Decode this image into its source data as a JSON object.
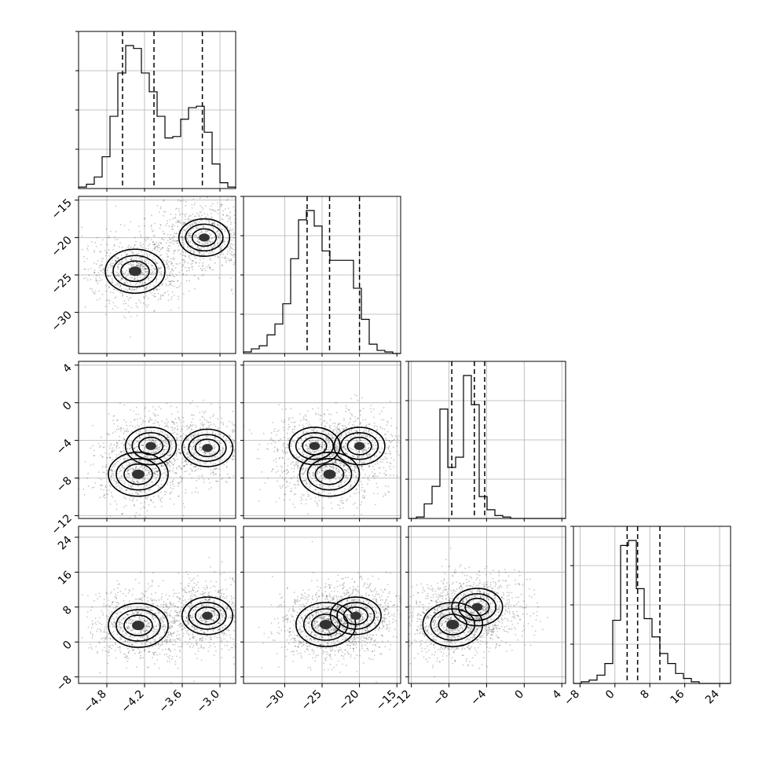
{
  "chart_data": {
    "type": "corner",
    "grid": true,
    "parameters": [
      {
        "ticks": [
          -4.8,
          -4.2,
          -3.6,
          -3.0
        ],
        "tick_labels": [
          "−4.8",
          "−4.2",
          "−3.6",
          "−3.0"
        ],
        "range": [
          -5.25,
          -2.75
        ]
      },
      {
        "ticks": [
          -30,
          -25,
          -20
        ],
        "tick_labels": [
          "−30",
          "−25",
          "−20"
        ],
        "range": [
          -35.5,
          -14.5
        ],
        "x_ticks": [
          -30,
          -25,
          -20,
          -15
        ],
        "x_tick_labels": [
          "−30",
          "−25",
          "−20",
          "−15"
        ],
        "y_tick_labels_left": [
          "−15",
          "−20",
          "−25",
          "−30"
        ],
        "y_ticks_left": [
          -15,
          -20,
          -25,
          -30
        ]
      },
      {
        "ticks": [
          -12,
          -8,
          -4,
          0,
          4
        ],
        "tick_labels": [
          "−12",
          "−8",
          "−4",
          "0",
          "4"
        ],
        "range": [
          -12.3,
          4.4
        ],
        "y_ticks_left": [
          4,
          0,
          -4,
          -8,
          -12
        ],
        "y_tick_labels_left": [
          "4",
          "0",
          "−4",
          "−8",
          "−12"
        ]
      },
      {
        "ticks": [
          -8,
          0,
          8,
          16,
          24
        ],
        "tick_labels": [
          "−8",
          "0",
          "8",
          "16",
          "24"
        ],
        "range": [
          -9.5,
          26.5
        ],
        "y_ticks_left": [
          24,
          16,
          8,
          0,
          -8
        ],
        "y_tick_labels_left": [
          "24",
          "16",
          "8",
          "0",
          "−8"
        ]
      }
    ],
    "histograms": [
      {
        "param": 0,
        "edges": [
          -5.25,
          -5.125,
          -5.0,
          -4.875,
          -4.75,
          -4.625,
          -4.5,
          -4.375,
          -4.25,
          -4.125,
          -4.0,
          -3.875,
          -3.75,
          -3.625,
          -3.5,
          -3.375,
          -3.25,
          -3.125,
          -3.0,
          -2.875,
          -2.75
        ],
        "counts": [
          0.01,
          0.03,
          0.08,
          0.22,
          0.5,
          0.8,
          0.99,
          0.97,
          0.8,
          0.67,
          0.5,
          0.35,
          0.36,
          0.48,
          0.56,
          0.57,
          0.39,
          0.17,
          0.04,
          0.01
        ],
        "quantiles": [
          -4.55,
          -4.05,
          -3.28
        ]
      },
      {
        "param": 1,
        "edges": [
          -35.5,
          -34.45,
          -33.4,
          -32.35,
          -31.3,
          -30.25,
          -29.2,
          -28.15,
          -27.1,
          -26.05,
          -25.0,
          -23.95,
          -22.9,
          -21.85,
          -20.8,
          -19.75,
          -18.7,
          -17.65,
          -16.6,
          -15.55,
          -14.5
        ],
        "counts": [
          0.01,
          0.03,
          0.05,
          0.12,
          0.19,
          0.32,
          0.61,
          0.86,
          0.92,
          0.82,
          0.66,
          0.6,
          0.6,
          0.6,
          0.42,
          0.22,
          0.06,
          0.02,
          0.01,
          0.0
        ],
        "quantiles": [
          -27.0,
          -24.0,
          -20.0
        ]
      },
      {
        "param": 2,
        "edges": [
          -12.3,
          -11.465,
          -10.63,
          -9.795,
          -8.96,
          -8.125,
          -7.29,
          -6.455,
          -5.62,
          -4.785,
          -3.95,
          -3.115,
          -2.28,
          -1.445,
          -0.61,
          0.225,
          1.06,
          1.895,
          2.73,
          3.565,
          4.4
        ],
        "counts": [
          0.0,
          0.01,
          0.1,
          0.22,
          0.75,
          0.35,
          0.42,
          0.98,
          0.78,
          0.15,
          0.06,
          0.02,
          0.01,
          0.0,
          0.0,
          0.0,
          0.0,
          0.0,
          0.0,
          0.0
        ],
        "quantiles": [
          -7.7,
          -5.3,
          -4.2
        ]
      },
      {
        "param": 3,
        "edges": [
          -9.5,
          -7.7,
          -5.9,
          -4.1,
          -2.3,
          -0.5,
          1.3,
          3.1,
          4.9,
          6.7,
          8.5,
          10.3,
          12.1,
          13.9,
          15.7,
          17.5,
          19.3,
          21.1,
          22.9,
          24.7,
          26.5
        ],
        "counts": [
          0.0,
          0.01,
          0.02,
          0.05,
          0.12,
          0.38,
          0.83,
          0.86,
          0.57,
          0.39,
          0.28,
          0.18,
          0.12,
          0.06,
          0.03,
          0.01,
          0.0,
          0.0,
          0.0,
          0.0
        ],
        "quantiles": [
          2.8,
          5.2,
          10.3
        ]
      }
    ],
    "joint_2d": [
      {
        "x": 0,
        "y": 1,
        "modes": [
          {
            "x": -4.35,
            "y": -24.5
          },
          {
            "x": -3.25,
            "y": -20.0
          }
        ]
      },
      {
        "x": 0,
        "y": 2,
        "modes": [
          {
            "x": -4.3,
            "y": -7.6
          },
          {
            "x": -4.1,
            "y": -4.6
          },
          {
            "x": -3.2,
            "y": -4.8
          }
        ]
      },
      {
        "x": 1,
        "y": 2,
        "modes": [
          {
            "x": -24.0,
            "y": -7.6
          },
          {
            "x": -26.0,
            "y": -4.6
          },
          {
            "x": -20.0,
            "y": -4.6
          }
        ]
      },
      {
        "x": 0,
        "y": 3,
        "modes": [
          {
            "x": -4.3,
            "y": 3.8
          },
          {
            "x": -3.2,
            "y": 6.0
          }
        ]
      },
      {
        "x": 1,
        "y": 3,
        "modes": [
          {
            "x": -24.5,
            "y": 4.0
          },
          {
            "x": -20.5,
            "y": 6.0
          }
        ]
      },
      {
        "x": 2,
        "y": 3,
        "modes": [
          {
            "x": -7.6,
            "y": 4.0
          },
          {
            "x": -5.0,
            "y": 8.0
          }
        ]
      }
    ]
  }
}
